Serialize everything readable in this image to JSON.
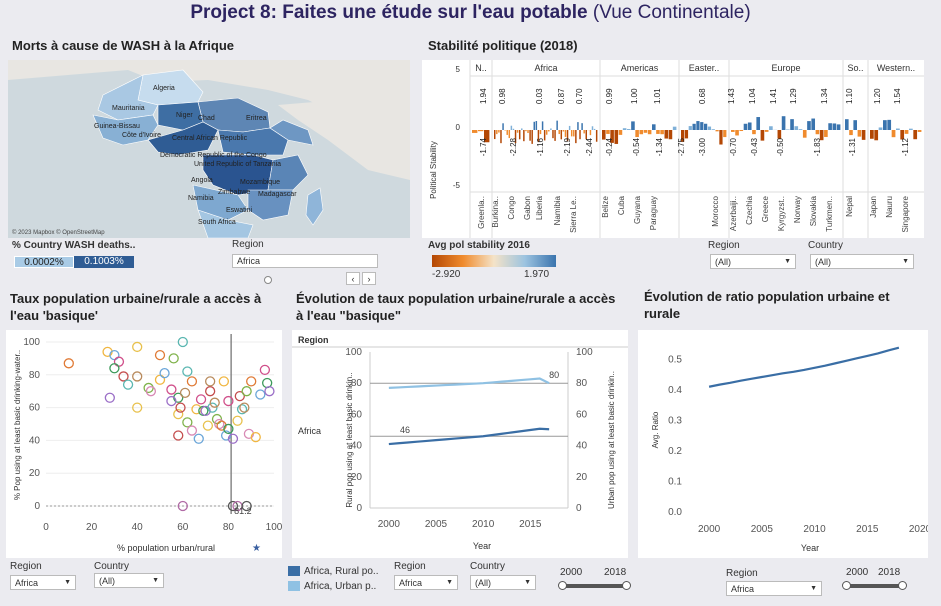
{
  "header": {
    "title_bold": "Project 8: Faites une étude sur l'eau potable",
    "title_rest": " (Vue Continentale)"
  },
  "map": {
    "title": "Morts à cause de WASH à la Afrique",
    "copyright": "© 2023 Mapbox © OpenStreetMap",
    "countries": [
      "Algeria",
      "Mauritania",
      "Niger",
      "Chad",
      "Eritrea",
      "Guinea-Bissau",
      "Côte d'Ivoire",
      "Central African Republic",
      "Democratic Republic of the Congo",
      "United Republic of Tanzania",
      "Angola",
      "Mozambique",
      "Zimbabwe",
      "Madagascar",
      "Namibia",
      "Eswatini",
      "South Africa"
    ],
    "legend_title": "% Country WASH deaths..",
    "legend_min": "0.0002%",
    "legend_max": "0.1003%",
    "region_label": "Region",
    "region_value": "Africa"
  },
  "political": {
    "title": "Stabilité politique (2018)",
    "ylabel": "Political Stability",
    "regions": [
      "N..",
      "Africa",
      "Americas",
      "Easter..",
      "Europe",
      "So..",
      "Western.."
    ],
    "ticks": [
      "5",
      "0",
      "-5"
    ],
    "top_labels": [
      "1.94",
      "0.98",
      "0.03",
      "0.87",
      "0.70",
      "0.99",
      "1.00",
      "1.01",
      "0.68",
      "1.43",
      "1.04",
      "1.41",
      "1.29",
      "1.34",
      "1.10",
      "1.20",
      "1.54"
    ],
    "bottom_labels": [
      "-1.74",
      "-2.28",
      "-1.16",
      "-2.19",
      "-2.44",
      "-0.24",
      "-0.54",
      "-1.34",
      "-2.75",
      "-3.00",
      "-0.70",
      "-0.43",
      "-0.50",
      "-1.83",
      "-1.31",
      "-1.12"
    ],
    "countries": [
      "Greenla..",
      "Burkina..",
      "Congo",
      "Gabon",
      "Liberia",
      "Namibia",
      "Sierra Le..",
      "Belize",
      "Cuba",
      "Guyana",
      "Paraguay",
      "Morocco",
      "Azerbaiji..",
      "Czechia",
      "Greece",
      "Kyrgyzst..",
      "Norway",
      "Slovakia",
      "Turkmen..",
      "Nepal",
      "Japan",
      "Nauru",
      "Singapore"
    ],
    "legend_title": "Avg pol stability 2016",
    "legend_min": "-2.920",
    "legend_max": "1.970",
    "region_label": "Region",
    "region_value": "(All)",
    "country_label": "Country",
    "country_value": "(All)"
  },
  "scatter": {
    "title": "Taux population urbaine/rurale a accès à l'eau 'basique'",
    "ylabel": "% Pop using at least basic drinking-water..",
    "xlabel": "% population urban/rural",
    "ref_label": "81.2",
    "region_label": "Region",
    "region_value": "Africa",
    "country_label": "Country",
    "country_value": "(All)"
  },
  "evolution": {
    "title": "Évolution de taux population urbaine/rurale a accès à l'eau \"basique\"",
    "region_header": "Region",
    "row_label": "Africa",
    "ylabel_left": "Rural pop using at least basic drinkin..",
    "ylabel_right": "Urban pop using at least basic drinkin..",
    "xlabel": "Year",
    "ref_rural": "46",
    "ref_urban": "80",
    "legend": [
      "Africa, Rural po..",
      "Africa, Urban p.."
    ],
    "region_label": "Region",
    "region_value": "Africa",
    "country_label": "Country",
    "country_value": "(All)",
    "slider_min": "2000",
    "slider_max": "2018"
  },
  "ratio": {
    "title": "Évolution de ratio population urbaine et rurale",
    "ylabel": "Avg. Ratio",
    "xlabel": "Year",
    "region_label": "Region",
    "region_value": "Africa",
    "slider_min": "2000",
    "slider_max": "2018"
  },
  "chart_data": [
    {
      "type": "scatter",
      "title": "Taux population urbaine/rurale a accès à l'eau 'basique'",
      "xlabel": "% population urban/rural",
      "ylabel": "% Pop using at least basic drinking-water..",
      "xlim": [
        0,
        100
      ],
      "ylim": [
        0,
        100
      ],
      "x_ticks": [
        0,
        20,
        40,
        60,
        80,
        100
      ],
      "y_ticks": [
        0,
        20,
        40,
        60,
        80,
        100
      ],
      "reference_x": 81.2,
      "points": [
        [
          10,
          87
        ],
        [
          27,
          94
        ],
        [
          30,
          92
        ],
        [
          32,
          88
        ],
        [
          30,
          84
        ],
        [
          28,
          66
        ],
        [
          40,
          97
        ],
        [
          34,
          79
        ],
        [
          36,
          74
        ],
        [
          40,
          79
        ],
        [
          45,
          72
        ],
        [
          46,
          70
        ],
        [
          50,
          92
        ],
        [
          50,
          77
        ],
        [
          52,
          81
        ],
        [
          55,
          71
        ],
        [
          58,
          66
        ],
        [
          55,
          64
        ],
        [
          58,
          56
        ],
        [
          59,
          60
        ],
        [
          60,
          100
        ],
        [
          61,
          69
        ],
        [
          62,
          51
        ],
        [
          64,
          46
        ],
        [
          64,
          76
        ],
        [
          66,
          59
        ],
        [
          67,
          41
        ],
        [
          68,
          65
        ],
        [
          69,
          58
        ],
        [
          70,
          58
        ],
        [
          71,
          49
        ],
        [
          72,
          70
        ],
        [
          73,
          60
        ],
        [
          74,
          63
        ],
        [
          75,
          53
        ],
        [
          76,
          50
        ],
        [
          77,
          49
        ],
        [
          78,
          76
        ],
        [
          79,
          43
        ],
        [
          80,
          64
        ],
        [
          80,
          47
        ],
        [
          82,
          41
        ],
        [
          84,
          52
        ],
        [
          85,
          67
        ],
        [
          86,
          59
        ],
        [
          87,
          60
        ],
        [
          88,
          70
        ],
        [
          89,
          44
        ],
        [
          90,
          76
        ],
        [
          92,
          42
        ],
        [
          94,
          68
        ],
        [
          96,
          83
        ],
        [
          97,
          75
        ],
        [
          98,
          70
        ],
        [
          40,
          60
        ],
        [
          58,
          43
        ],
        [
          62,
          82
        ],
        [
          72,
          76
        ],
        [
          56,
          90
        ],
        [
          60,
          0
        ],
        [
          82,
          0
        ],
        [
          84,
          0
        ],
        [
          88,
          0
        ]
      ]
    },
    {
      "type": "line",
      "title": "Évolution de taux population urbaine/rurale a accès à l'eau \"basique\"",
      "xlabel": "Year",
      "ylim": [
        0,
        100
      ],
      "x": [
        2000,
        2001,
        2002,
        2003,
        2004,
        2005,
        2006,
        2007,
        2008,
        2009,
        2010,
        2011,
        2012,
        2013,
        2014,
        2015,
        2016,
        2017
      ],
      "series": [
        {
          "name": "Africa, Rural po..",
          "values": [
            41,
            41.5,
            42,
            42.5,
            43,
            43.5,
            44,
            44.5,
            45,
            45.5,
            46,
            46.8,
            47.6,
            48.4,
            49.2,
            50,
            50.8,
            50.5
          ]
        },
        {
          "name": "Africa, Urban p..",
          "values": [
            77,
            77.3,
            77.6,
            77.9,
            78.2,
            78.5,
            78.8,
            79.1,
            79.4,
            79.7,
            80,
            80.5,
            81,
            81.5,
            82,
            82.5,
            83,
            80
          ]
        }
      ],
      "reference_lines": [
        46,
        80
      ]
    },
    {
      "type": "line",
      "title": "Évolution de ratio population urbaine et rurale",
      "xlabel": "Year",
      "ylabel": "Avg. Ratio",
      "xlim": [
        1998,
        2020
      ],
      "ylim": [
        0,
        0.55
      ],
      "x": [
        2000,
        2001,
        2002,
        2003,
        2004,
        2005,
        2006,
        2007,
        2008,
        2009,
        2010,
        2011,
        2012,
        2013,
        2014,
        2015,
        2016,
        2017,
        2018
      ],
      "series": [
        {
          "name": "Africa",
          "values": [
            0.41,
            0.417,
            0.423,
            0.43,
            0.436,
            0.442,
            0.448,
            0.454,
            0.459,
            0.465,
            0.472,
            0.479,
            0.487,
            0.495,
            0.503,
            0.511,
            0.519,
            0.529,
            0.538
          ]
        }
      ]
    },
    {
      "type": "bar",
      "title": "Stabilité politique (2018)",
      "ylabel": "Political Stability",
      "ylim": [
        -5,
        5
      ],
      "categories": [
        "Greenla..",
        "Burkina..",
        "Congo",
        "Gabon",
        "Liberia",
        "Namibia",
        "Sierra Le..",
        "Belize",
        "Cuba",
        "Guyana",
        "Paraguay",
        "Morocco",
        "Azerbaiji..",
        "Czechia",
        "Greece",
        "Kyrgyzst..",
        "Norway",
        "Slovakia",
        "Turkmen..",
        "Nepal",
        "Japan",
        "Nauru",
        "Singapore"
      ]
    }
  ]
}
